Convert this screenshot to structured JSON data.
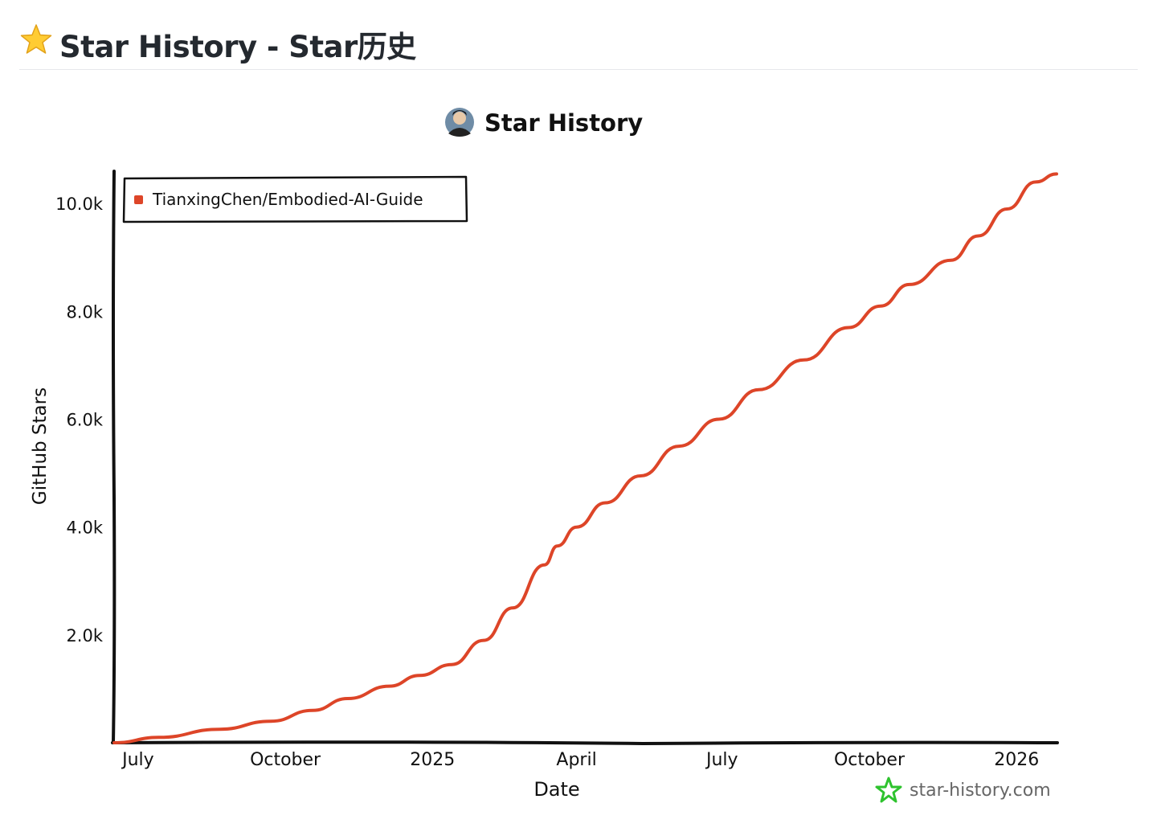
{
  "page": {
    "title": "Star History - Star历史",
    "title_icon": "star-emoji-icon"
  },
  "chart_data": {
    "type": "line",
    "title": "Star History",
    "title_icon": "avatar",
    "xlabel": "Date",
    "ylabel": "GitHub Stars",
    "x_type": "date",
    "xlim": [
      "2024-06-16",
      "2026-01-26"
    ],
    "ylim": [
      0,
      10600
    ],
    "x_ticks": [
      {
        "date": "2024-07-01",
        "label": "July"
      },
      {
        "date": "2024-10-01",
        "label": "October"
      },
      {
        "date": "2025-01-01",
        "label": "2025"
      },
      {
        "date": "2025-04-01",
        "label": "April"
      },
      {
        "date": "2025-07-01",
        "label": "July"
      },
      {
        "date": "2025-10-01",
        "label": "October"
      },
      {
        "date": "2026-01-01",
        "label": "2026"
      }
    ],
    "y_ticks": [
      {
        "value": 2000,
        "label": "2.0k"
      },
      {
        "value": 4000,
        "label": "4.0k"
      },
      {
        "value": 6000,
        "label": "6.0k"
      },
      {
        "value": 8000,
        "label": "8.0k"
      },
      {
        "value": 10000,
        "label": "10.0k"
      }
    ],
    "grid": false,
    "legend_position": "top-left",
    "series": [
      {
        "name": "TianxingChen/Embodied-AI-Guide",
        "color": "#dd4528",
        "x": [
          "2024-06-16",
          "2024-07-14",
          "2024-08-21",
          "2024-09-22",
          "2024-10-18",
          "2024-11-09",
          "2024-12-05",
          "2024-12-24",
          "2025-01-13",
          "2025-02-02",
          "2025-02-20",
          "2025-03-12",
          "2025-03-20",
          "2025-04-01",
          "2025-04-19",
          "2025-05-11",
          "2025-06-04",
          "2025-06-29",
          "2025-07-24",
          "2025-08-21",
          "2025-09-18",
          "2025-10-08",
          "2025-10-26",
          "2025-11-21",
          "2025-12-08",
          "2025-12-26",
          "2026-01-13",
          "2026-01-26"
        ],
        "y": [
          0,
          100,
          250,
          400,
          600,
          820,
          1050,
          1250,
          1450,
          1900,
          2500,
          3300,
          3650,
          4000,
          4450,
          4950,
          5500,
          6000,
          6550,
          7100,
          7700,
          8100,
          8500,
          8950,
          9400,
          9900,
          10400,
          10550
        ]
      }
    ],
    "watermark": "star-history.com",
    "watermark_icon": "star-history-logo-icon"
  },
  "colors": {
    "line": "#dd4528",
    "axis": "#111111",
    "watermark": "#666666",
    "logo": "#2ec32e"
  }
}
